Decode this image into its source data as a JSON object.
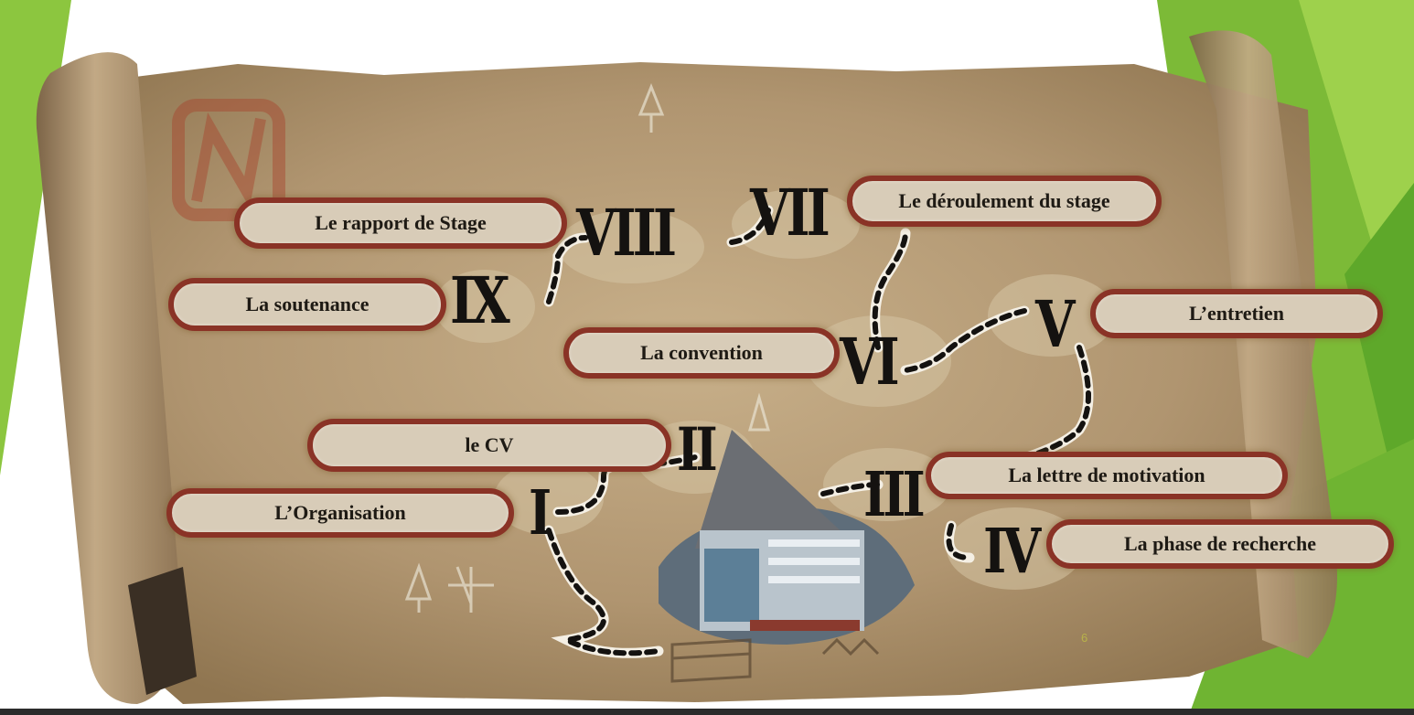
{
  "slide": {
    "page_number": "6",
    "colors": {
      "accent_green": "#8cc63f",
      "map_paper": "#b49a70",
      "label_border": "#8a3326",
      "label_fill": "#d8ccb8"
    }
  },
  "steps": [
    {
      "numeral": "I",
      "label": "L’Organisation"
    },
    {
      "numeral": "II",
      "label": "le CV"
    },
    {
      "numeral": "III",
      "label": "La lettre de motivation"
    },
    {
      "numeral": "IV",
      "label": "La phase de recherche"
    },
    {
      "numeral": "V",
      "label": "L’entretien"
    },
    {
      "numeral": "VI",
      "label": "La convention"
    },
    {
      "numeral": "VII",
      "label": "Le déroulement du stage"
    },
    {
      "numeral": "VIII",
      "label": "Le rapport de Stage"
    },
    {
      "numeral": "IX",
      "label": "La soutenance"
    }
  ],
  "icons": {
    "compass": "compass-icon",
    "treasure_chest": "treasure-chest-icon",
    "building": "building-photo"
  }
}
